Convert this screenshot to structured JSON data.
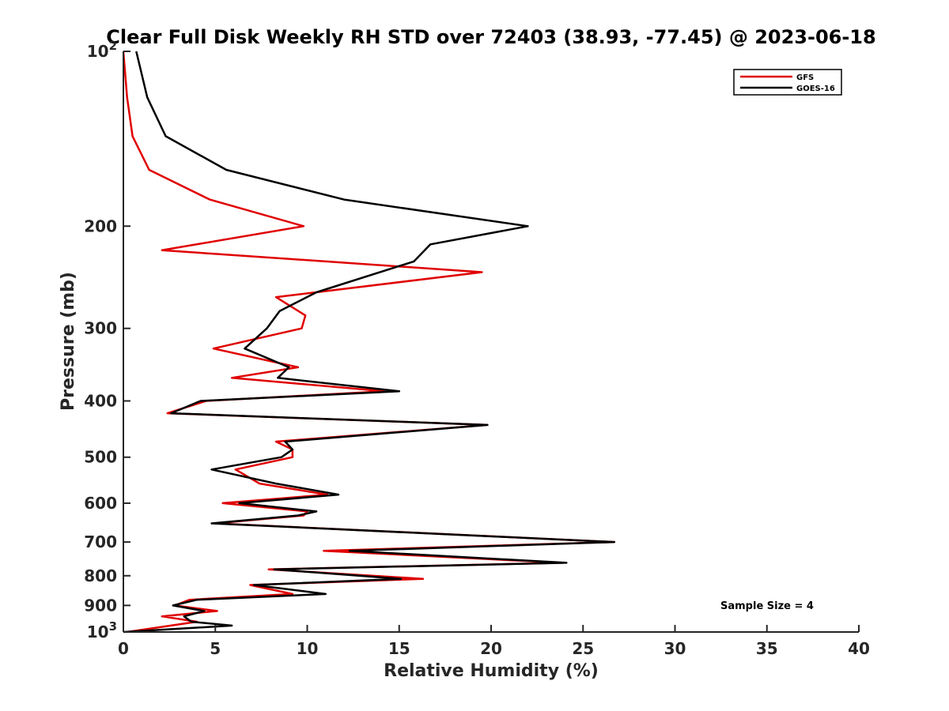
{
  "chart_data": {
    "type": "line",
    "title": "Clear Full Disk Weekly RH STD over 72403 (38.93, -77.45) @ 2023-06-18",
    "xlabel": "Relative Humidity (%)",
    "ylabel": "Pressure (mb)",
    "xlim": [
      0,
      40
    ],
    "ylim": [
      100,
      1000
    ],
    "y_scale": "log",
    "y_reversed": true,
    "x_ticks": [
      0,
      5,
      10,
      15,
      20,
      25,
      30,
      35,
      40
    ],
    "x_tick_labels": [
      "0",
      "5",
      "10",
      "15",
      "20",
      "25",
      "30",
      "35",
      "40"
    ],
    "y_ticks": [
      100,
      200,
      300,
      400,
      500,
      600,
      700,
      800,
      900,
      1000
    ],
    "y_tick_labels": [
      {
        "base": "10",
        "exp": "2"
      },
      {
        "base": "200"
      },
      {
        "base": "300"
      },
      {
        "base": "400"
      },
      {
        "base": "500"
      },
      {
        "base": "600"
      },
      {
        "base": "700"
      },
      {
        "base": "800"
      },
      {
        "base": "900"
      },
      {
        "base": "10",
        "exp": "3"
      }
    ],
    "grid": false,
    "legend_position": "top-right",
    "annotation": "Sample Size = 4",
    "series": [
      {
        "name": "GFS",
        "color": "#e00000",
        "points": [
          [
            0.0,
            100
          ],
          [
            0.2,
            120
          ],
          [
            0.5,
            140
          ],
          [
            1.4,
            160
          ],
          [
            4.7,
            180
          ],
          [
            9.8,
            200
          ],
          [
            2.1,
            220
          ],
          [
            19.5,
            240
          ],
          [
            8.3,
            265
          ],
          [
            9.9,
            285
          ],
          [
            9.7,
            300
          ],
          [
            4.9,
            325
          ],
          [
            9.5,
            350
          ],
          [
            5.9,
            365
          ],
          [
            14.2,
            385
          ],
          [
            4.5,
            400
          ],
          [
            2.4,
            420
          ],
          [
            19.8,
            440
          ],
          [
            8.3,
            470
          ],
          [
            9.2,
            485
          ],
          [
            9.2,
            500
          ],
          [
            6.1,
            525
          ],
          [
            7.4,
            555
          ],
          [
            11.1,
            580
          ],
          [
            5.4,
            600
          ],
          [
            10.0,
            620
          ],
          [
            9.8,
            630
          ],
          [
            5.0,
            650
          ],
          [
            26.7,
            700
          ],
          [
            10.9,
            725
          ],
          [
            23.9,
            760
          ],
          [
            7.9,
            780
          ],
          [
            16.3,
            810
          ],
          [
            6.9,
            830
          ],
          [
            9.2,
            860
          ],
          [
            3.6,
            880
          ],
          [
            2.8,
            900
          ],
          [
            5.1,
            920
          ],
          [
            2.1,
            940
          ],
          [
            4.0,
            960
          ],
          [
            0.2,
            1000
          ]
        ]
      },
      {
        "name": "GOES-16",
        "color": "#000000",
        "points": [
          [
            0.7,
            100
          ],
          [
            1.3,
            120
          ],
          [
            2.3,
            140
          ],
          [
            5.6,
            160
          ],
          [
            12.0,
            180
          ],
          [
            22.0,
            200
          ],
          [
            16.7,
            215
          ],
          [
            15.8,
            230
          ],
          [
            10.5,
            260
          ],
          [
            8.5,
            280
          ],
          [
            7.8,
            300
          ],
          [
            6.6,
            325
          ],
          [
            9.0,
            350
          ],
          [
            8.4,
            365
          ],
          [
            15.0,
            385
          ],
          [
            4.2,
            400
          ],
          [
            2.6,
            420
          ],
          [
            19.8,
            440
          ],
          [
            8.8,
            470
          ],
          [
            9.2,
            485
          ],
          [
            8.6,
            500
          ],
          [
            4.8,
            525
          ],
          [
            8.3,
            555
          ],
          [
            11.7,
            580
          ],
          [
            6.3,
            600
          ],
          [
            10.5,
            620
          ],
          [
            9.5,
            630
          ],
          [
            4.8,
            650
          ],
          [
            26.7,
            700
          ],
          [
            12.3,
            725
          ],
          [
            24.1,
            760
          ],
          [
            8.2,
            780
          ],
          [
            15.1,
            810
          ],
          [
            7.1,
            830
          ],
          [
            11.0,
            860
          ],
          [
            4.0,
            880
          ],
          [
            2.7,
            900
          ],
          [
            4.4,
            920
          ],
          [
            3.3,
            940
          ],
          [
            3.7,
            960
          ],
          [
            5.9,
            975
          ],
          [
            0.0,
            1000
          ]
        ]
      }
    ]
  }
}
